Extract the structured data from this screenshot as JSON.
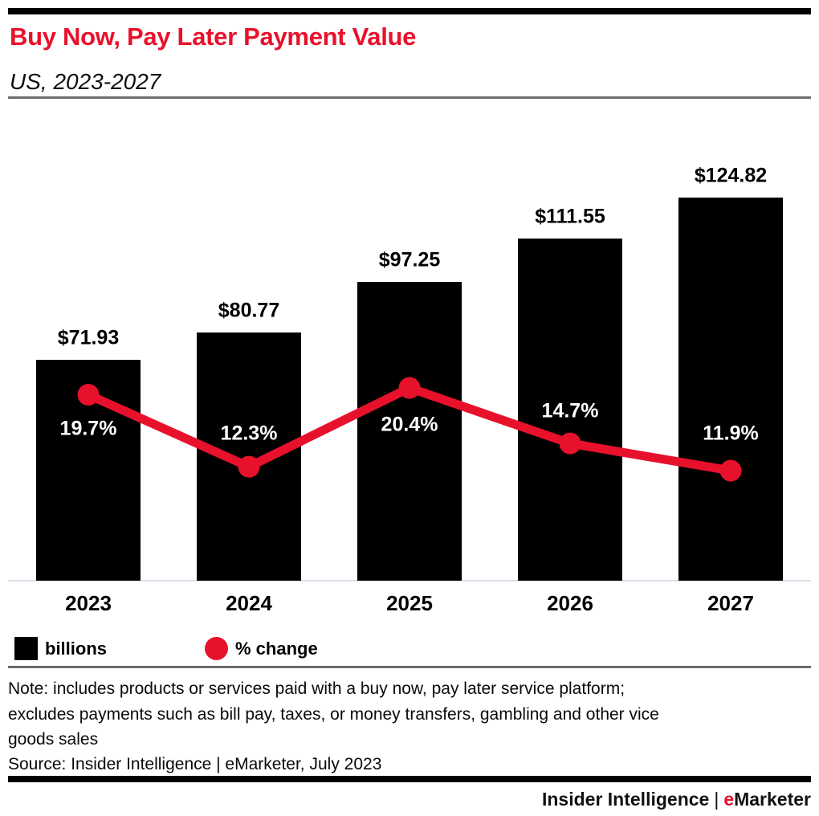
{
  "header": {
    "title": "Buy Now, Pay Later Payment Value",
    "subtitle": "US, 2023-2027",
    "title_color": "#e8112b"
  },
  "chart_data": {
    "type": "bar",
    "title": "Buy Now, Pay Later Payment Value",
    "subtitle": "US, 2023-2027",
    "categories": [
      "2023",
      "2024",
      "2025",
      "2026",
      "2027"
    ],
    "series": [
      {
        "name": "billions",
        "type": "bar",
        "color": "#000000",
        "values": [
          71.93,
          80.77,
          97.25,
          111.55,
          124.82
        ],
        "labels": [
          "$71.93",
          "$80.77",
          "$97.25",
          "$111.55",
          "$124.82"
        ]
      },
      {
        "name": "% change",
        "type": "line",
        "color": "#e8112b",
        "values": [
          19.7,
          12.3,
          20.4,
          14.7,
          11.9
        ],
        "labels": [
          "19.7%",
          "12.3%",
          "20.4%",
          "14.7%",
          "11.9%"
        ],
        "label_side": [
          "below",
          "above",
          "below",
          "above",
          "above"
        ],
        "label_dy": [
          43,
          -41,
          46,
          -40,
          -46
        ]
      }
    ],
    "xlabel": "",
    "ylabel": "",
    "grid": false,
    "legend_position": "bottom-left",
    "value_axis_visible": false
  },
  "legend": {
    "bar_label": "billions",
    "line_label": "% change",
    "bar_color": "#000000",
    "line_color": "#e8112b"
  },
  "notes": {
    "note_lines": [
      "Note: includes products or services paid with a buy now, pay later service platform;",
      "excludes payments such as bill pay, taxes, or money transfers, gambling and other vice",
      "goods sales"
    ],
    "source": "Source: Insider Intelligence | eMarketer, July 2023"
  },
  "footer": {
    "brand_left": "Insider Intelligence",
    "brand_separator": "|",
    "brand_accent": "e",
    "brand_rest": "Marketer",
    "accent_color": "#e8112b"
  }
}
